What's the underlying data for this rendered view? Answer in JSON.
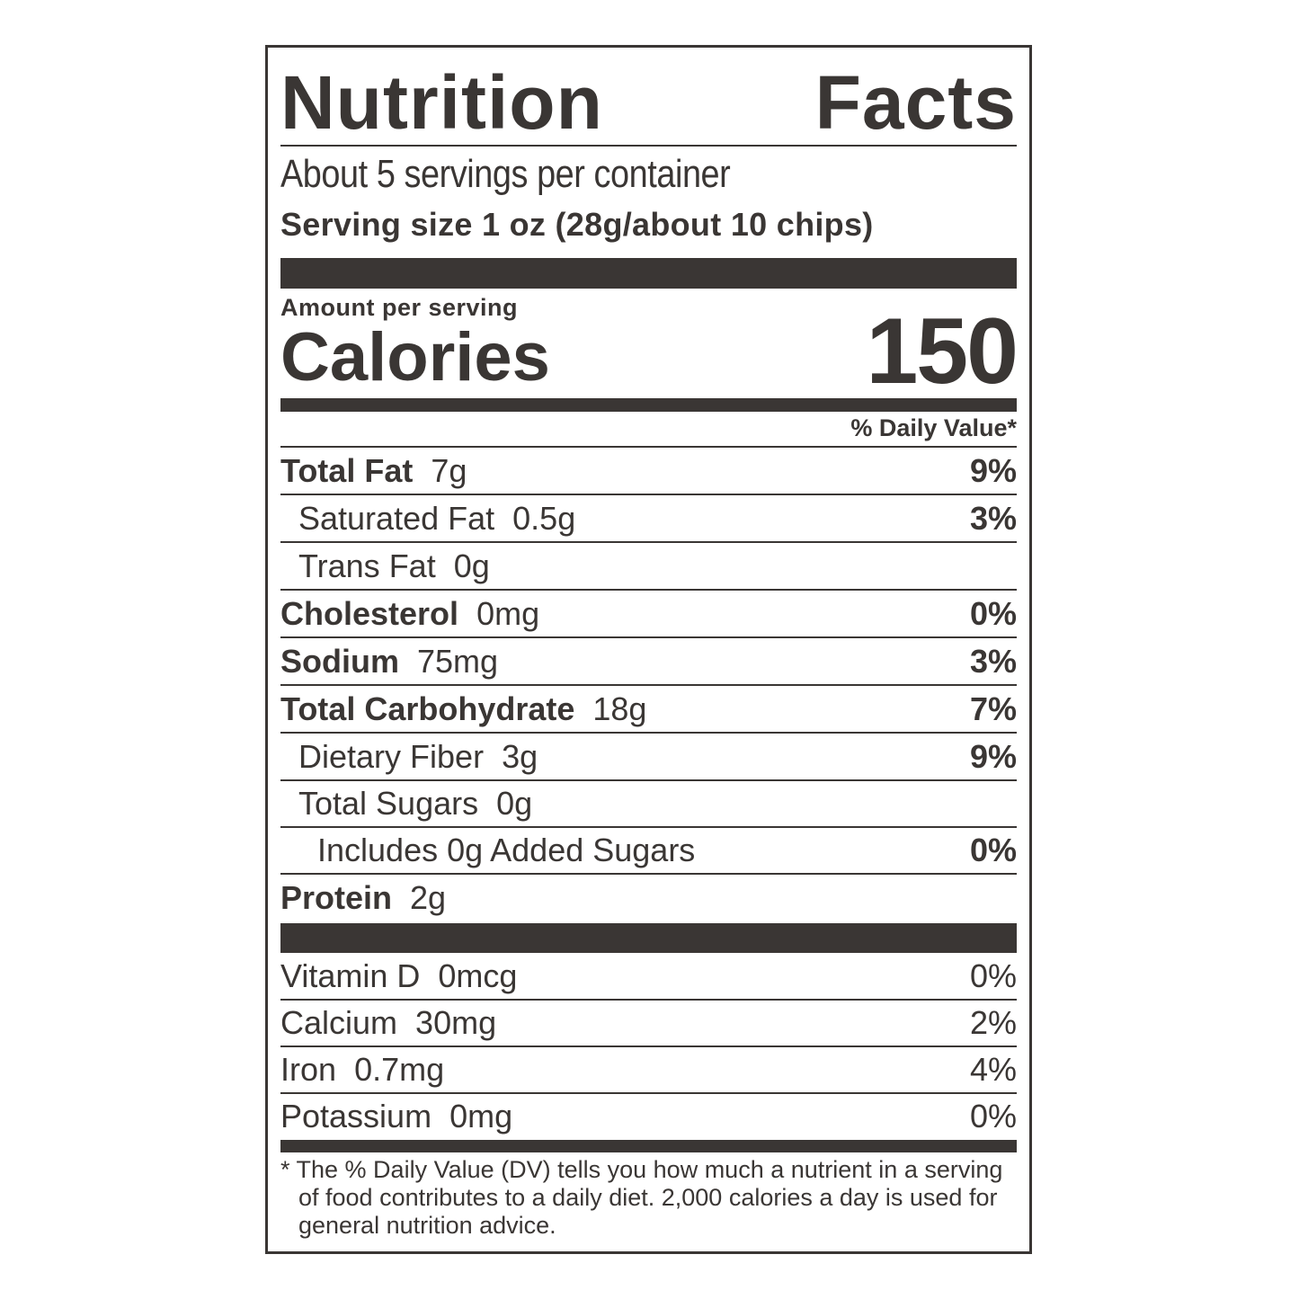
{
  "label": {
    "title_left": "Nutrition",
    "title_right": "Facts",
    "servings_per_container": "About 5 servings per container",
    "serving_size": "Serving size 1 oz (28g/about 10 chips)",
    "amount_per_serving": "Amount per serving",
    "calories_label": "Calories",
    "calories_value": "150",
    "daily_value_header": "% Daily Value*",
    "nutrients": [
      {
        "name": "Total Fat",
        "amount": "7g",
        "dv": "9%"
      },
      {
        "name": "Saturated Fat",
        "amount": "0.5g",
        "dv": "3%"
      },
      {
        "name": "Trans Fat",
        "amount": "0g",
        "dv": ""
      },
      {
        "name": "Cholesterol",
        "amount": "0mg",
        "dv": "0%"
      },
      {
        "name": "Sodium",
        "amount": "75mg",
        "dv": "3%"
      },
      {
        "name": "Total Carbohydrate",
        "amount": "18g",
        "dv": "7%"
      },
      {
        "name": "Dietary Fiber",
        "amount": "3g",
        "dv": "9%"
      },
      {
        "name": "Total Sugars",
        "amount": "0g",
        "dv": ""
      },
      {
        "name": "Includes 0g Added Sugars",
        "amount": "",
        "dv": "0%"
      },
      {
        "name": "Protein",
        "amount": "2g",
        "dv": ""
      }
    ],
    "vitamins": [
      {
        "name": "Vitamin D",
        "amount": "0mcg",
        "dv": "0%"
      },
      {
        "name": "Calcium",
        "amount": "30mg",
        "dv": "2%"
      },
      {
        "name": "Iron",
        "amount": "0.7mg",
        "dv": "4%"
      },
      {
        "name": "Potassium",
        "amount": "0mg",
        "dv": "0%"
      }
    ],
    "footnote": "* The % Daily Value (DV) tells you how much a nutrient in a serving of food contributes to a daily diet. 2,000 calories a day is used for general nutrition advice."
  },
  "colors": {
    "ink": "#3a3634",
    "background": "#ffffff"
  }
}
